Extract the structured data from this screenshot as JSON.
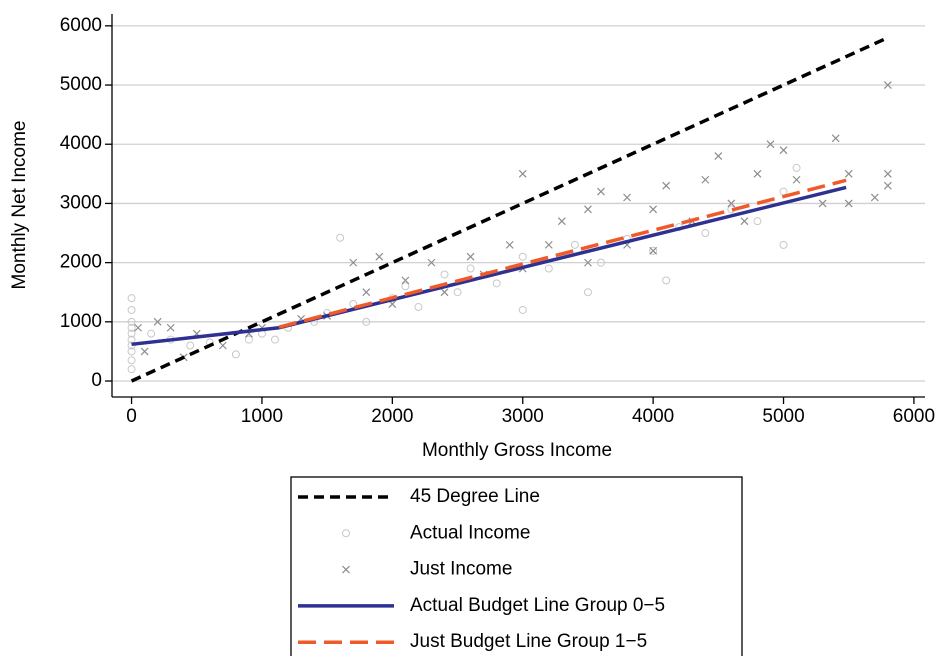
{
  "chart_data": {
    "type": "scatter",
    "xlabel": "Monthly Gross Income",
    "ylabel": "Monthly Net Income",
    "xlim": [
      -150,
      6085
    ],
    "ylim": [
      -270,
      6200
    ],
    "xticks": [
      0,
      1000,
      2000,
      3000,
      4000,
      5000,
      6000
    ],
    "yticks": [
      0,
      1000,
      2000,
      3000,
      4000,
      5000,
      6000
    ],
    "grid": true,
    "legend": "bottom",
    "series": [
      {
        "name": "45 Degree Line",
        "kind": "line",
        "dash": "dashed",
        "color": "#000000",
        "x": [
          0,
          5800
        ],
        "values": [
          0,
          5800
        ]
      },
      {
        "name": "Actual Income",
        "kind": "scatter",
        "marker": "circle",
        "color": "#c8c8c8",
        "x": [
          0,
          0,
          0,
          0,
          0,
          0,
          0,
          0,
          0,
          0,
          150,
          300,
          450,
          600,
          800,
          900,
          1000,
          1100,
          1200,
          1400,
          1600,
          1500,
          1700,
          1800,
          2000,
          2100,
          2200,
          2400,
          2500,
          2600,
          2800,
          3000,
          3000,
          3200,
          3400,
          3500,
          3600,
          3800,
          4000,
          4100,
          4200,
          4400,
          4600,
          4800,
          5000,
          5000,
          5100
        ],
        "values": [
          200,
          350,
          500,
          600,
          700,
          800,
          900,
          1000,
          1200,
          1400,
          800,
          700,
          600,
          650,
          450,
          700,
          800,
          700,
          900,
          1000,
          2420,
          1150,
          1300,
          1000,
          1400,
          1600,
          1250,
          1800,
          1500,
          1900,
          1650,
          1200,
          2100,
          1900,
          2300,
          1500,
          2000,
          2400,
          2200,
          1700,
          2600,
          2500,
          2900,
          2700,
          2300,
          3200,
          3600
        ]
      },
      {
        "name": "Just Income",
        "kind": "scatter",
        "marker": "x",
        "color": "#8c8c8c",
        "x": [
          50,
          100,
          200,
          300,
          400,
          500,
          700,
          900,
          1000,
          1300,
          1500,
          1700,
          1900,
          1800,
          2000,
          2100,
          2300,
          2400,
          2600,
          2700,
          2900,
          3000,
          3000,
          3200,
          3300,
          3500,
          3500,
          3600,
          3800,
          3800,
          4000,
          4000,
          4100,
          4300,
          4400,
          4500,
          4600,
          4700,
          4800,
          4900,
          5000,
          5100,
          5300,
          5400,
          5500,
          5500,
          5700,
          5800,
          5800,
          5800
        ],
        "values": [
          900,
          500,
          1000,
          900,
          400,
          800,
          600,
          800,
          900,
          1050,
          1100,
          2000,
          2100,
          1500,
          1300,
          1700,
          2000,
          1500,
          2100,
          1800,
          2300,
          3500,
          1900,
          2300,
          2700,
          2000,
          2900,
          3200,
          2300,
          3100,
          2900,
          2200,
          3300,
          2700,
          3400,
          3800,
          3000,
          2700,
          3500,
          4000,
          3900,
          3400,
          3000,
          4100,
          3500,
          3000,
          3100,
          5000,
          3500,
          3300
        ]
      },
      {
        "name": "Actual Budget Line Group 0−5",
        "kind": "line",
        "dash": "solid",
        "color": "#2e3192",
        "x": [
          0,
          1130,
          5480
        ],
        "values": [
          620,
          900,
          3270
        ]
      },
      {
        "name": "Just Budget Line Group 1−5",
        "kind": "line",
        "dash": "longdash",
        "color": "#f05a28",
        "x": [
          1130,
          5480
        ],
        "values": [
          910,
          3390
        ]
      }
    ]
  }
}
